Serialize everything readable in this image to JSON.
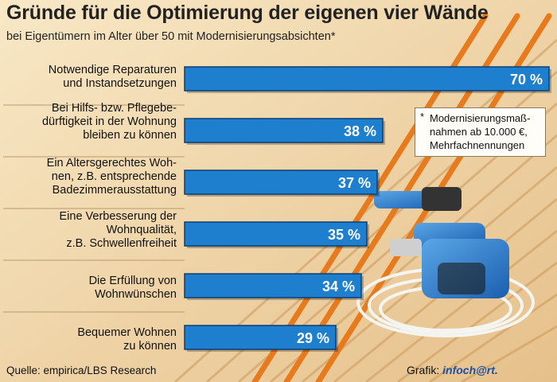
{
  "chart_data": {
    "type": "bar",
    "orientation": "horizontal",
    "title": "Gründe für die Optimierung der eigenen vier Wände",
    "subtitle": "bei Eigentümern im Alter über 50 mit Modernisierungsabsichten*",
    "categories": [
      "Notwendige Reparaturen\nund Instandsetzungen",
      "Bei Hilfs- bzw. Pflegebe-\ndürftigkeit in der Wohnung\nbleiben zu können",
      "Ein Altersgerechtes Woh-\nnen, z.B. entsprechende\nBadezimmerausstattung",
      "Eine Verbesserung der\nWohnqualität,\nz.B. Schwellenfreiheit",
      "Die Erfüllung von\nWohnwünschen",
      "Bequemer Wohnen\nzu können"
    ],
    "values": [
      70,
      38,
      37,
      35,
      34,
      29
    ],
    "value_labels": [
      "70 %",
      "38 %",
      "37 %",
      "35 %",
      "34 %",
      "29 %"
    ],
    "xlim": [
      0,
      70
    ],
    "grid": false,
    "footnote": {
      "marker": "*",
      "text": "Modernisierungsmaß-\nnahmen ab 10.000 €,\nMehrfachnennungen"
    },
    "source": "Quelle: empirica/LBS Research",
    "credit": {
      "label": "Grafik:",
      "logo": "infoch@rt."
    },
    "colors": {
      "bar": "#1d7fce",
      "bar_border": "#0b3f73",
      "bar_text": "#ffffff"
    }
  }
}
